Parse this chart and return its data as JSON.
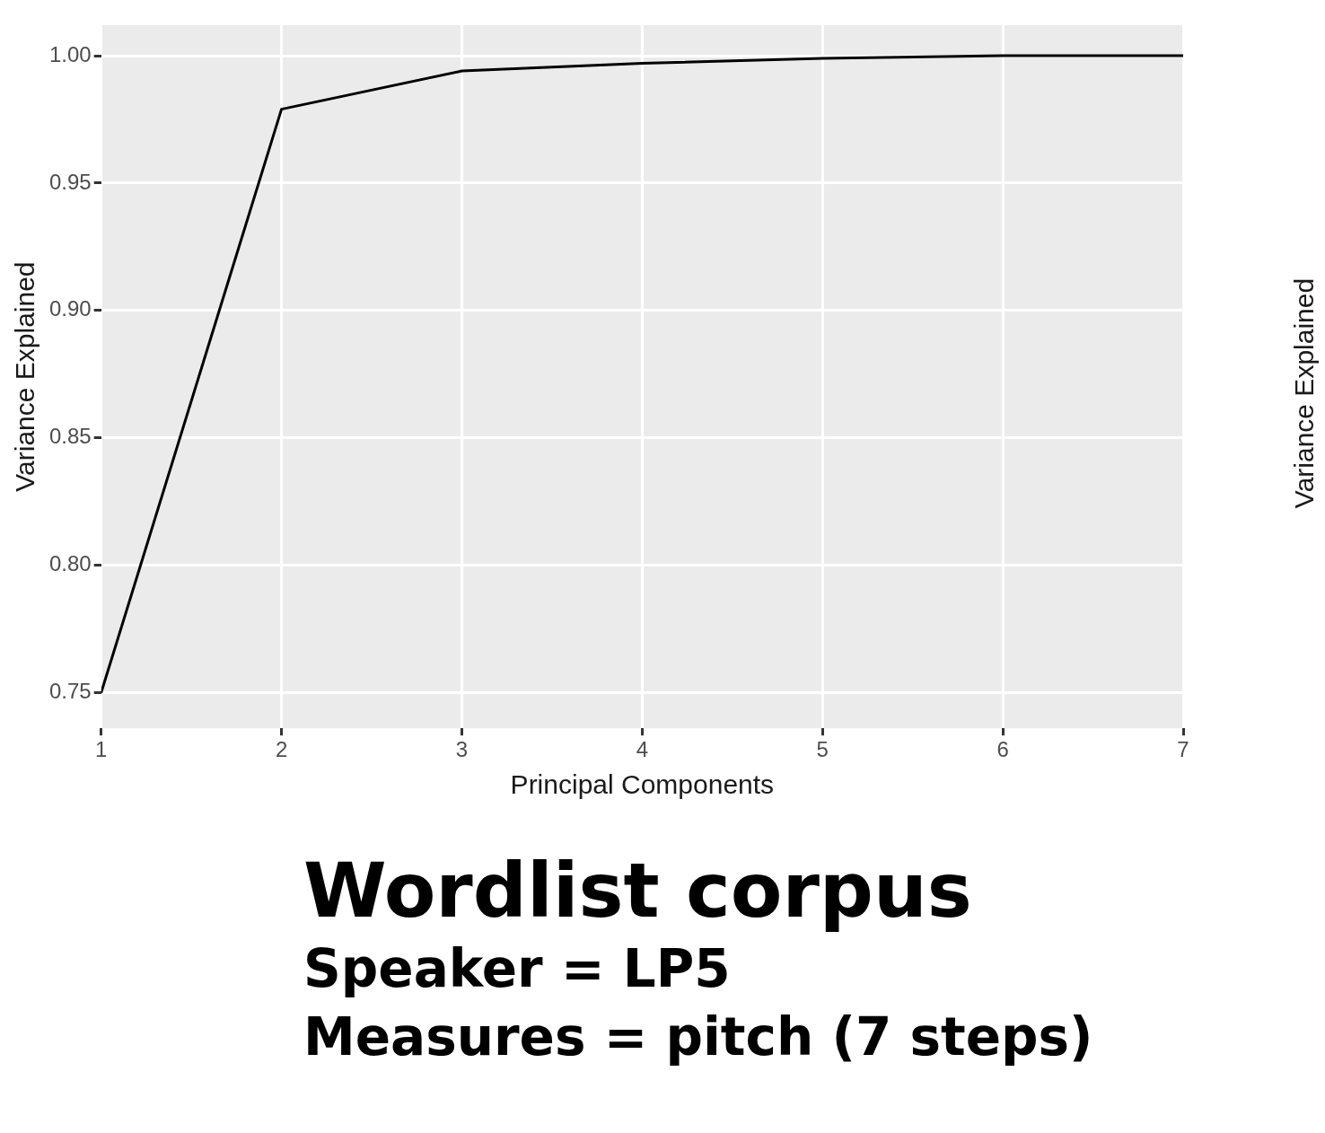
{
  "chart_data": {
    "type": "line",
    "title": "Wordlist corpus",
    "subtitle": "Speaker = LP5",
    "xlabel": "Principal Components",
    "ylabel": "Variance Explained",
    "x": [
      1,
      2,
      3,
      4,
      5,
      6,
      7
    ],
    "series": [
      {
        "color": "#000000",
        "values": [
          0.75,
          0.979,
          0.994,
          0.997,
          0.999,
          1.0,
          1.0
        ]
      }
    ],
    "xlim": [
      1,
      7
    ],
    "xticks": [
      1,
      2,
      3,
      4,
      5,
      6,
      7
    ],
    "ylim": [
      0.736,
      1.012
    ],
    "yticks": [
      {
        "value": 0.75,
        "label": "0.75"
      },
      {
        "value": 0.8,
        "label": "0.80"
      },
      {
        "value": 0.85,
        "label": "0.85"
      },
      {
        "value": 0.9,
        "label": "0.90"
      },
      {
        "value": 0.95,
        "label": "0.95"
      },
      {
        "value": 1,
        "label": "1.00"
      }
    ],
    "grid": true,
    "legend": false,
    "marker": "none",
    "line_style": "solid",
    "annotations": [
      "Measures = pitch (7 steps)",
      "Variance Explained"
    ]
  }
}
